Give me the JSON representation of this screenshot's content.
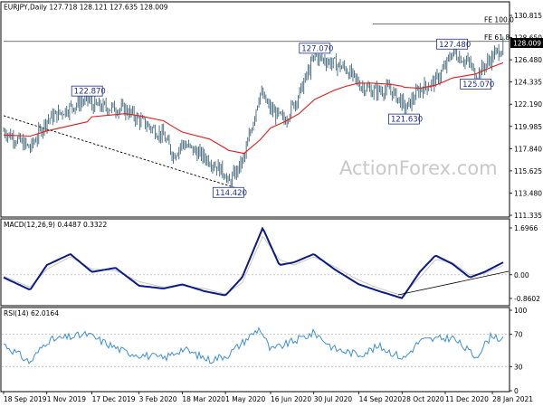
{
  "price_panel": {
    "header": "EURJPY,Daily  127.718 128.121 127.635 128.009",
    "last_price": "128.009",
    "y_ticks": [
      "130.815",
      "128.650",
      "126.480",
      "124.335",
      "122.190",
      "119.985",
      "117.840",
      "115.625",
      "113.480",
      "111.335"
    ],
    "fe_levels": [
      {
        "label": "FE 100.0",
        "value": 130.2
      },
      {
        "label": "FE 61.8",
        "value": 128.5
      }
    ],
    "annotations": [
      {
        "label": "122.870",
        "date": "2019-12-12",
        "value": 122.87
      },
      {
        "label": "114.420",
        "date": "2020-05-04",
        "value": 114.42
      },
      {
        "label": "127.070",
        "date": "2020-07-31",
        "value": 127.07
      },
      {
        "label": "121.630",
        "date": "2020-10-30",
        "value": 121.63
      },
      {
        "label": "127.480",
        "date": "2020-12-18",
        "value": 127.48
      },
      {
        "label": "125.070",
        "date": "2021-01-11",
        "value": 125.07
      }
    ],
    "watermark": "ActionForex.com"
  },
  "macd_panel": {
    "header": "MACD(12,26,9) 0.4487 0.3322",
    "y_ticks": [
      "1.6966",
      "0.00",
      "-0.8602"
    ]
  },
  "rsi_panel": {
    "header": "RSI(14) 62.0164",
    "y_ticks": [
      "100",
      "70",
      "30",
      "0"
    ]
  },
  "x_ticks": [
    "18 Sep 2019",
    "1 Nov 2019",
    "17 Dec 2019",
    "3 Feb 2020",
    "18 Mar 2020",
    "1 May 2020",
    "16 Jun 2020",
    "30 Jul 2020",
    "14 Sep 2020",
    "28 Oct 2020",
    "11 Dec 2020",
    "28 Jan 2021"
  ],
  "colors": {
    "price": "#3c6478",
    "ma": "#e81c1c",
    "macd": "#0b1b86",
    "signal": "#c8c8c8",
    "rsi": "#3d8fdc"
  },
  "chart_data": [
    {
      "type": "line",
      "title": "EURJPY,Daily",
      "x": [
        "2019-09-18",
        "2019-10-15",
        "2019-11-01",
        "2019-12-12",
        "2019-12-17",
        "2020-01-20",
        "2020-02-03",
        "2020-02-28",
        "2020-03-09",
        "2020-03-18",
        "2020-04-15",
        "2020-05-01",
        "2020-05-04",
        "2020-05-20",
        "2020-06-05",
        "2020-06-16",
        "2020-06-30",
        "2020-07-15",
        "2020-07-31",
        "2020-08-20",
        "2020-09-01",
        "2020-09-14",
        "2020-09-28",
        "2020-10-15",
        "2020-10-28",
        "2020-10-30",
        "2020-11-15",
        "2020-12-01",
        "2020-12-11",
        "2020-12-18",
        "2021-01-05",
        "2021-01-11",
        "2021-01-28",
        "2021-02-08"
      ],
      "series": [
        {
          "name": "",
          "values": [
            119.7,
            118.0,
            120.8,
            122.87,
            122.2,
            121.8,
            120.8,
            119.2,
            117.3,
            118.5,
            116.8,
            115.5,
            114.42,
            117.0,
            123.5,
            121.8,
            120.7,
            123.3,
            127.07,
            126.3,
            125.8,
            124.3,
            123.6,
            123.8,
            122.5,
            121.63,
            123.8,
            124.6,
            126.0,
            127.48,
            126.3,
            125.07,
            127.0,
            128.009
          ]
        },
        {
          "name": "",
          "values": [
            119.3,
            119.2,
            119.7,
            120.6,
            121.1,
            121.4,
            121.2,
            120.7,
            120.1,
            119.6,
            118.9,
            118.0,
            117.8,
            117.5,
            118.8,
            120.0,
            120.6,
            121.4,
            122.8,
            123.7,
            124.1,
            124.4,
            124.4,
            124.3,
            124.1,
            124.0,
            123.9,
            124.2,
            124.6,
            124.9,
            125.2,
            125.3,
            126.0,
            126.4
          ]
        }
      ],
      "y_range": [
        111.335,
        131.5
      ],
      "trendline": {
        "from": {
          "date": "2019-09-18",
          "value": 121.2
        },
        "to": {
          "date": "2020-05-12",
          "value": 114.1
        }
      }
    },
    {
      "type": "line",
      "title": "MACD(12,26,9)",
      "x": [
        "2019-09-18",
        "2019-10-15",
        "2019-11-01",
        "2019-11-25",
        "2019-12-17",
        "2020-01-10",
        "2020-02-03",
        "2020-02-28",
        "2020-03-18",
        "2020-04-10",
        "2020-05-01",
        "2020-05-18",
        "2020-06-08",
        "2020-06-25",
        "2020-07-10",
        "2020-07-30",
        "2020-08-20",
        "2020-09-14",
        "2020-10-05",
        "2020-10-28",
        "2020-11-15",
        "2020-12-01",
        "2020-12-18",
        "2021-01-05",
        "2021-01-20",
        "2021-02-08"
      ],
      "series": [
        {
          "name": "",
          "values": [
            -0.1,
            -0.55,
            0.35,
            0.75,
            0.1,
            0.25,
            -0.4,
            -0.5,
            -0.35,
            -0.6,
            -0.75,
            -0.1,
            1.6966,
            0.35,
            0.45,
            0.75,
            0.2,
            -0.35,
            -0.6,
            -0.85,
            0.1,
            0.7,
            0.4,
            -0.1,
            0.1,
            0.4487
          ]
        },
        {
          "name": "",
          "values": [
            -0.05,
            -0.45,
            0.2,
            0.65,
            0.2,
            0.15,
            -0.25,
            -0.45,
            -0.4,
            -0.5,
            -0.7,
            -0.3,
            1.4,
            0.55,
            0.35,
            0.65,
            0.3,
            -0.2,
            -0.5,
            -0.75,
            -0.1,
            0.55,
            0.45,
            0.0,
            0.05,
            0.3322
          ]
        }
      ],
      "y_range": [
        -0.8602,
        1.6966
      ]
    },
    {
      "type": "line",
      "title": "RSI(14)",
      "x": [
        "2019-09-18",
        "2019-10-15",
        "2019-11-01",
        "2019-12-12",
        "2020-01-20",
        "2020-02-28",
        "2020-03-18",
        "2020-04-15",
        "2020-05-04",
        "2020-06-05",
        "2020-06-16",
        "2020-07-31",
        "2020-08-20",
        "2020-09-14",
        "2020-10-05",
        "2020-10-30",
        "2020-11-15",
        "2020-12-18",
        "2021-01-11",
        "2021-01-28",
        "2021-02-08"
      ],
      "series": [
        {
          "name": "",
          "values": [
            58,
            35,
            62,
            70,
            48,
            40,
            52,
            38,
            45,
            78,
            50,
            72,
            52,
            45,
            55,
            40,
            62,
            66,
            42,
            70,
            62.0164
          ]
        }
      ],
      "y_range": [
        0,
        100
      ],
      "levels": [
        70,
        30
      ]
    }
  ]
}
